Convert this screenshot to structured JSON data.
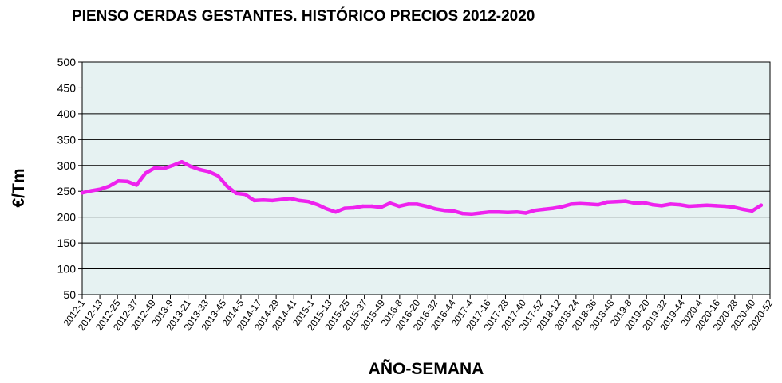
{
  "chart_data": {
    "type": "line",
    "title": "PIENSO CERDAS GESTANTES. HISTÓRICO PRECIOS 2012-2020",
    "xlabel": "AÑO-SEMANA",
    "ylabel": "€/Tm",
    "ylim": [
      50,
      500
    ],
    "yticks": [
      "50",
      "100",
      "150",
      "200",
      "250",
      "300",
      "350",
      "400",
      "450",
      "500"
    ],
    "grid": "horizontal",
    "legend": "none",
    "plot_background": "#e6f2f2",
    "series_color": "#ee22ee",
    "x_tick_labels": [
      "2012-1",
      "2012-13",
      "2012-25",
      "2012-37",
      "2012-49",
      "2013-9",
      "2013-21",
      "2013-33",
      "2013-45",
      "2014-5",
      "2014-17",
      "2014-29",
      "2014-41",
      "2015-1",
      "2015-13",
      "2015-25",
      "2015-37",
      "2015-49",
      "2016-8",
      "2016-20",
      "2016-32",
      "2016-44",
      "2017-4",
      "2017-16",
      "2017-28",
      "2017-40",
      "2017-52",
      "2018-12",
      "2018-24",
      "2018-36",
      "2018-48",
      "2019-8",
      "2019-20",
      "2019-32",
      "2019-44",
      "2020-4",
      "2020-16",
      "2020-28",
      "2020-40",
      "2020-52"
    ],
    "series": [
      {
        "values": [
          247,
          251,
          254,
          260,
          270,
          269,
          262,
          285,
          295,
          294,
          300,
          307,
          298,
          292,
          288,
          280,
          260,
          246,
          244,
          232,
          233,
          232,
          234,
          236,
          232,
          230,
          224,
          216,
          210,
          217,
          218,
          221,
          221,
          219,
          227,
          221,
          225,
          225,
          221,
          216,
          213,
          212,
          207,
          206,
          208,
          210,
          210,
          209,
          210,
          208,
          213,
          215,
          217,
          220,
          225,
          226,
          225,
          224,
          229,
          230,
          231,
          227,
          228,
          224,
          222,
          225,
          224,
          221,
          222,
          223,
          222,
          221,
          219,
          215,
          212,
          223
        ]
      }
    ]
  }
}
